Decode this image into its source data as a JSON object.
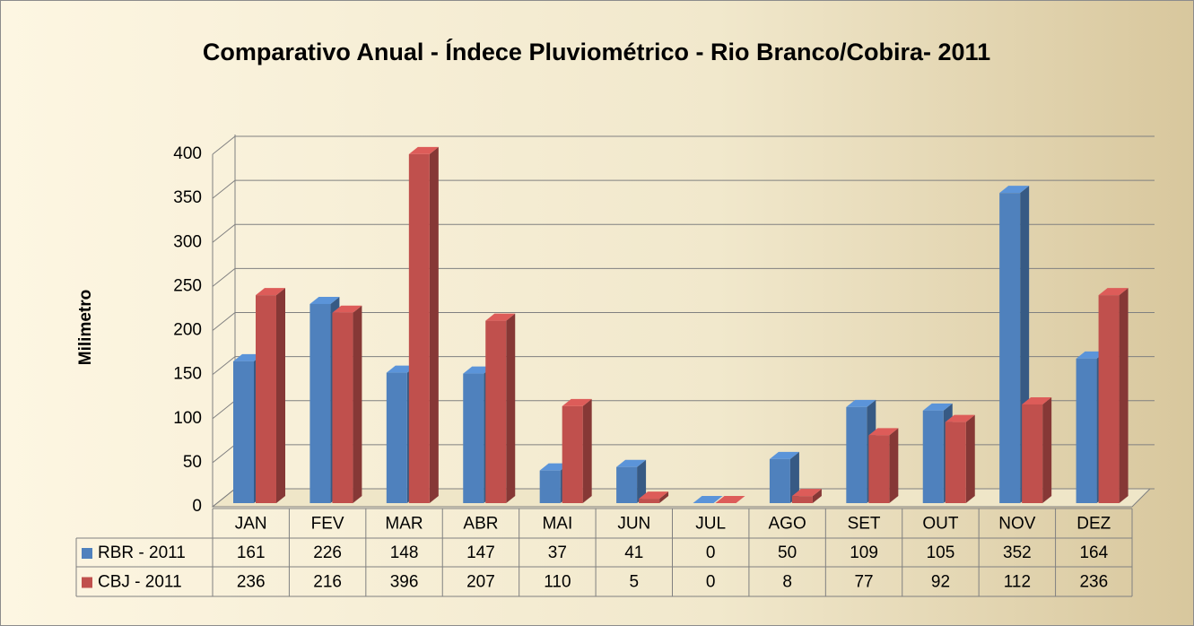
{
  "chart_data": {
    "type": "bar3d",
    "title": "Comparativo Anual - Índece Pluviométrico - Rio Branco/Cobira- 2011",
    "y_axis_label": "Milimetro",
    "categories": [
      "JAN",
      "FEV",
      "MAR",
      "ABR",
      "MAI",
      "JUN",
      "JUL",
      "AGO",
      "SET",
      "OUT",
      "NOV",
      "DEZ"
    ],
    "series": [
      {
        "name": "RBR - 2011",
        "color": "#4f81bd",
        "values": [
          161,
          226,
          148,
          147,
          37,
          41,
          0,
          50,
          109,
          105,
          352,
          164
        ]
      },
      {
        "name": "CBJ - 2011",
        "color": "#c0504d",
        "values": [
          236,
          216,
          396,
          207,
          110,
          5,
          0,
          8,
          77,
          92,
          112,
          236
        ]
      }
    ],
    "ylim": [
      0,
      400
    ],
    "yticks": [
      0,
      50,
      100,
      150,
      200,
      250,
      300,
      350,
      400
    ],
    "grid": true,
    "data_table": true
  }
}
